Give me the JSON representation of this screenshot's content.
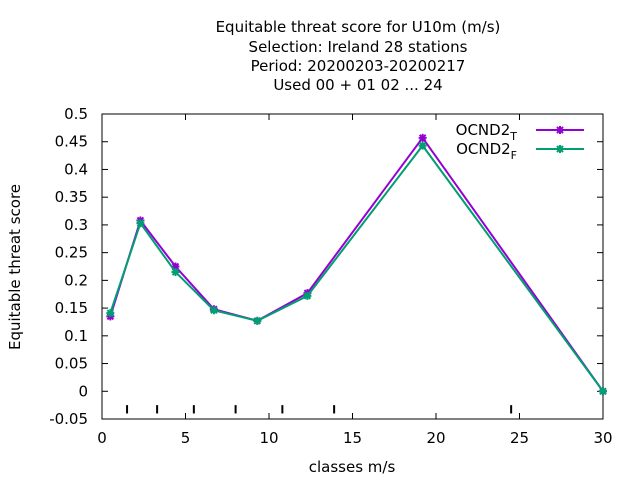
{
  "chart_data": {
    "type": "line",
    "title_lines": [
      "Equitable threat score  for U10m (m/s)",
      "Selection: Ireland     28 stations",
      "Period: 20200203-20200217",
      "Used  00 + 01 02 ... 24"
    ],
    "xlabel": "classes m/s",
    "ylabel": "Equitable threat score",
    "xlim": [
      0,
      30
    ],
    "ylim": [
      -0.05,
      0.5
    ],
    "xticks": [
      0,
      5,
      10,
      15,
      20,
      25,
      30
    ],
    "yticks": [
      -0.05,
      0,
      0.05,
      0.1,
      0.15,
      0.2,
      0.25,
      0.3,
      0.35,
      0.4,
      0.45,
      0.5
    ],
    "ytick_labels": [
      "-0.05",
      "0",
      "0.05",
      "0.1",
      "0.15",
      "0.2",
      "0.25",
      "0.3",
      "0.35",
      "0.4",
      "0.45",
      "0.5"
    ],
    "class_boundaries": [
      1.5,
      3.3,
      5.5,
      8.0,
      10.8,
      13.9,
      24.5
    ],
    "grid": false,
    "legend_position": "top-right",
    "series": [
      {
        "name": "OCND2",
        "subscript": "T",
        "color": "#9400d3",
        "x": [
          0.5,
          2.3,
          4.4,
          6.7,
          9.3,
          12.3,
          19.2,
          30
        ],
        "y": [
          0.135,
          0.308,
          0.225,
          0.148,
          0.127,
          0.177,
          0.457,
          0.0
        ]
      },
      {
        "name": "OCND2",
        "subscript": "F",
        "color": "#009e73",
        "x": [
          0.5,
          2.3,
          4.4,
          6.7,
          9.3,
          12.3,
          19.2,
          30
        ],
        "y": [
          0.141,
          0.303,
          0.215,
          0.146,
          0.127,
          0.172,
          0.443,
          0.0
        ]
      }
    ]
  }
}
